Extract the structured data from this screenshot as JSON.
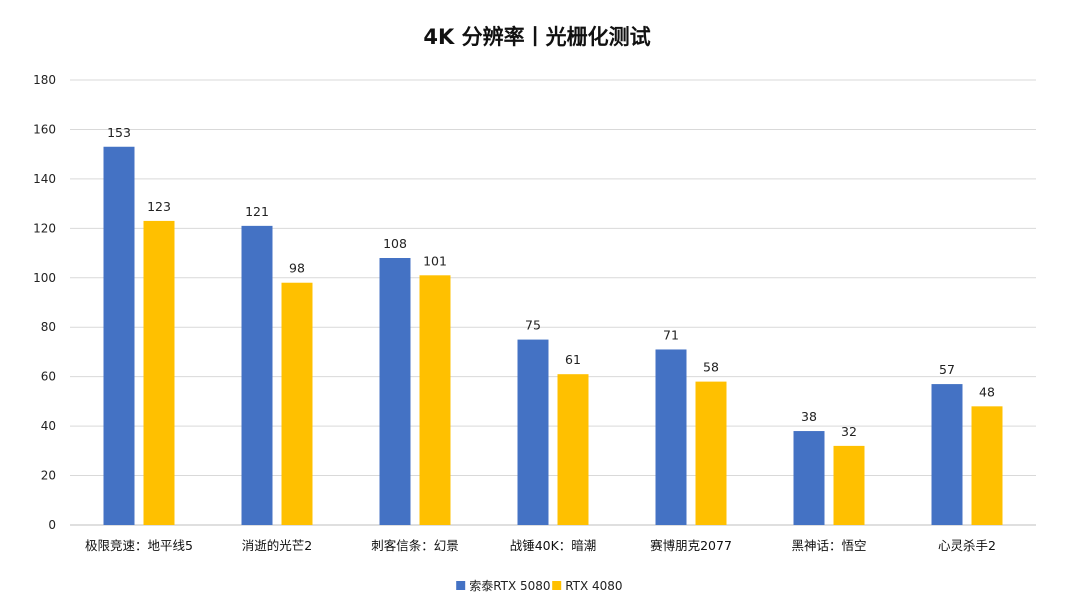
{
  "chart_data": {
    "type": "bar",
    "title": "4K 分辨率丨光栅化测试",
    "xlabel": "",
    "ylabel": "",
    "ylim": [
      0,
      180
    ],
    "yticks": [
      0,
      20,
      40,
      60,
      80,
      100,
      120,
      140,
      160,
      180
    ],
    "grid": true,
    "legend_position": "bottom",
    "categories": [
      "极限竞速：地平线5",
      "消逝的光芒2",
      "刺客信条：幻景",
      "战锤40K：暗潮",
      "赛博朋克2077",
      "黑神话：悟空",
      "心灵杀手2"
    ],
    "series": [
      {
        "name": "索泰RTX 5080",
        "color": "#4472C4",
        "values": [
          153,
          121,
          108,
          75,
          71,
          38,
          57
        ]
      },
      {
        "name": "RTX 4080",
        "color": "#FFC000",
        "values": [
          123,
          98,
          101,
          61,
          58,
          32,
          48
        ]
      }
    ]
  }
}
